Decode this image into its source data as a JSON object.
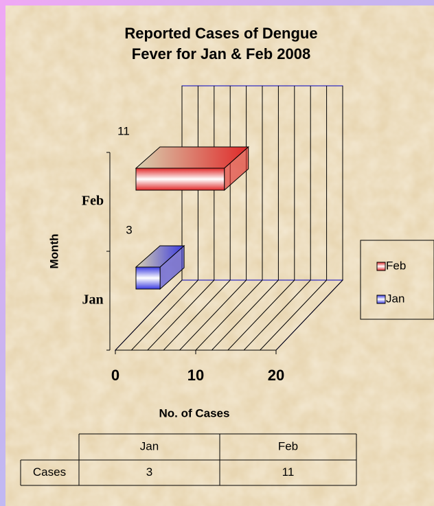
{
  "chart_data": {
    "type": "bar3d_horizontal",
    "title": [
      "Reported Cases of Dengue",
      "Fever for Jan & Feb 2008"
    ],
    "y_label": "Month",
    "x_label": "No. of Cases",
    "categories": [
      "Jan",
      "Feb"
    ],
    "values": [
      3,
      11
    ],
    "colors": [
      "#3a3ae0",
      "#e02828"
    ],
    "xlim": [
      0,
      20
    ],
    "xticks": [
      0,
      10,
      20
    ],
    "gridlines": [
      0,
      2,
      4,
      6,
      8,
      10,
      12,
      14,
      16,
      18,
      20
    ],
    "legend": "right",
    "table_row_label": "Cases"
  }
}
